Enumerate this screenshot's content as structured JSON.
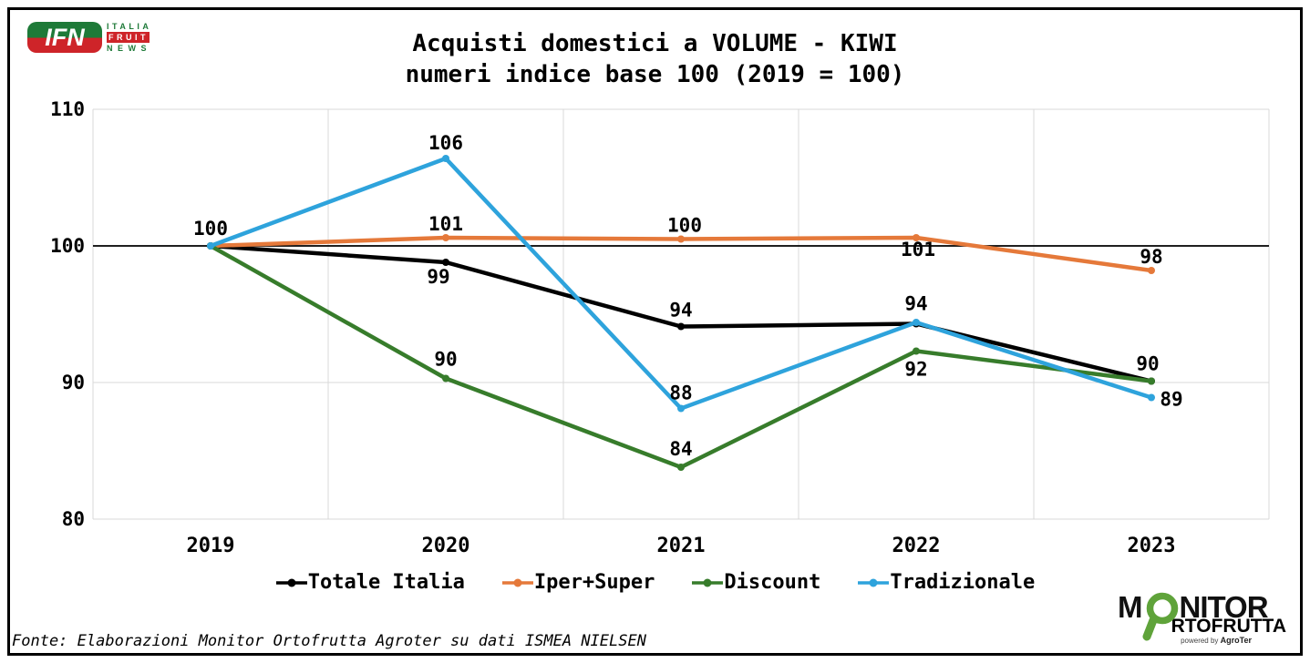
{
  "logo_ifn": {
    "acronym": "IFN",
    "line1": "ITALIA",
    "line2": "FRUIT",
    "line3": "NEWS",
    "green": "#1E7A38",
    "red": "#CE2429"
  },
  "title": {
    "line1": "Acquisti domestici a VOLUME - KIWI",
    "line2": "numeri indice base 100 (2019 = 100)"
  },
  "chart_data": {
    "type": "line",
    "title": "Acquisti domestici a VOLUME - KIWI numeri indice base 100 (2019 = 100)",
    "categories": [
      "2019",
      "2020",
      "2021",
      "2022",
      "2023"
    ],
    "xlabel": "",
    "ylabel": "",
    "ylim": [
      80,
      110
    ],
    "yticks": [
      80,
      90,
      100,
      110
    ],
    "baseline": 100,
    "grid": true,
    "gridline_color": "#D9D9D9",
    "baseline_color": "#000000",
    "legend_position": "bottom",
    "series": [
      {
        "name": "Totale Italia",
        "color": "#000000",
        "values": [
          100,
          99,
          94,
          94,
          90
        ],
        "values_plot": [
          100,
          98.8,
          94.1,
          94.3,
          90.1
        ],
        "labels": [
          "100",
          "99",
          "94",
          "94",
          "90"
        ],
        "label_offsets": [
          [
            0,
            -12
          ],
          [
            -8,
            23
          ],
          [
            0,
            -11
          ],
          [
            0,
            -15
          ],
          [
            -4,
            -12
          ]
        ]
      },
      {
        "name": "Iper+Super",
        "color": "#E5793A",
        "values": [
          100,
          101,
          100,
          101,
          98
        ],
        "values_plot": [
          100,
          100.6,
          100.5,
          100.6,
          98.2
        ],
        "labels": [
          null,
          "101",
          "100",
          "101",
          "98"
        ],
        "label_offsets": [
          null,
          [
            0,
            -8
          ],
          [
            4,
            -8
          ],
          [
            2,
            20
          ],
          [
            0,
            -8
          ]
        ]
      },
      {
        "name": "Discount",
        "color": "#377C2B",
        "values": [
          100,
          90,
          84,
          92,
          90
        ],
        "values_plot": [
          100,
          90.3,
          83.8,
          92.3,
          90.1
        ],
        "labels": [
          null,
          "90",
          "84",
          "92",
          null
        ],
        "label_offsets": [
          null,
          [
            0,
            -14
          ],
          [
            0,
            -13
          ],
          [
            0,
            27
          ],
          null
        ]
      },
      {
        "name": "Tradizionale",
        "color": "#2EA3DC",
        "values": [
          100,
          106,
          88,
          94,
          89
        ],
        "values_plot": [
          100,
          106.4,
          88.1,
          94.4,
          88.9
        ],
        "labels": [
          null,
          "106",
          "88",
          null,
          "89"
        ],
        "label_offsets": [
          null,
          [
            0,
            -10
          ],
          [
            0,
            -10
          ],
          null,
          [
            22,
            9
          ]
        ]
      }
    ]
  },
  "footer": {
    "source": "Fonte: Elaborazioni Monitor Ortofrutta Agroter su dati ISMEA NIELSEN"
  },
  "logo_monitor": {
    "part1": "M",
    "part2": "NITOR",
    "part3": "RTOFRUTTA",
    "powered": "powered by",
    "brand": "AgroTer",
    "green": "#5FA33A"
  }
}
